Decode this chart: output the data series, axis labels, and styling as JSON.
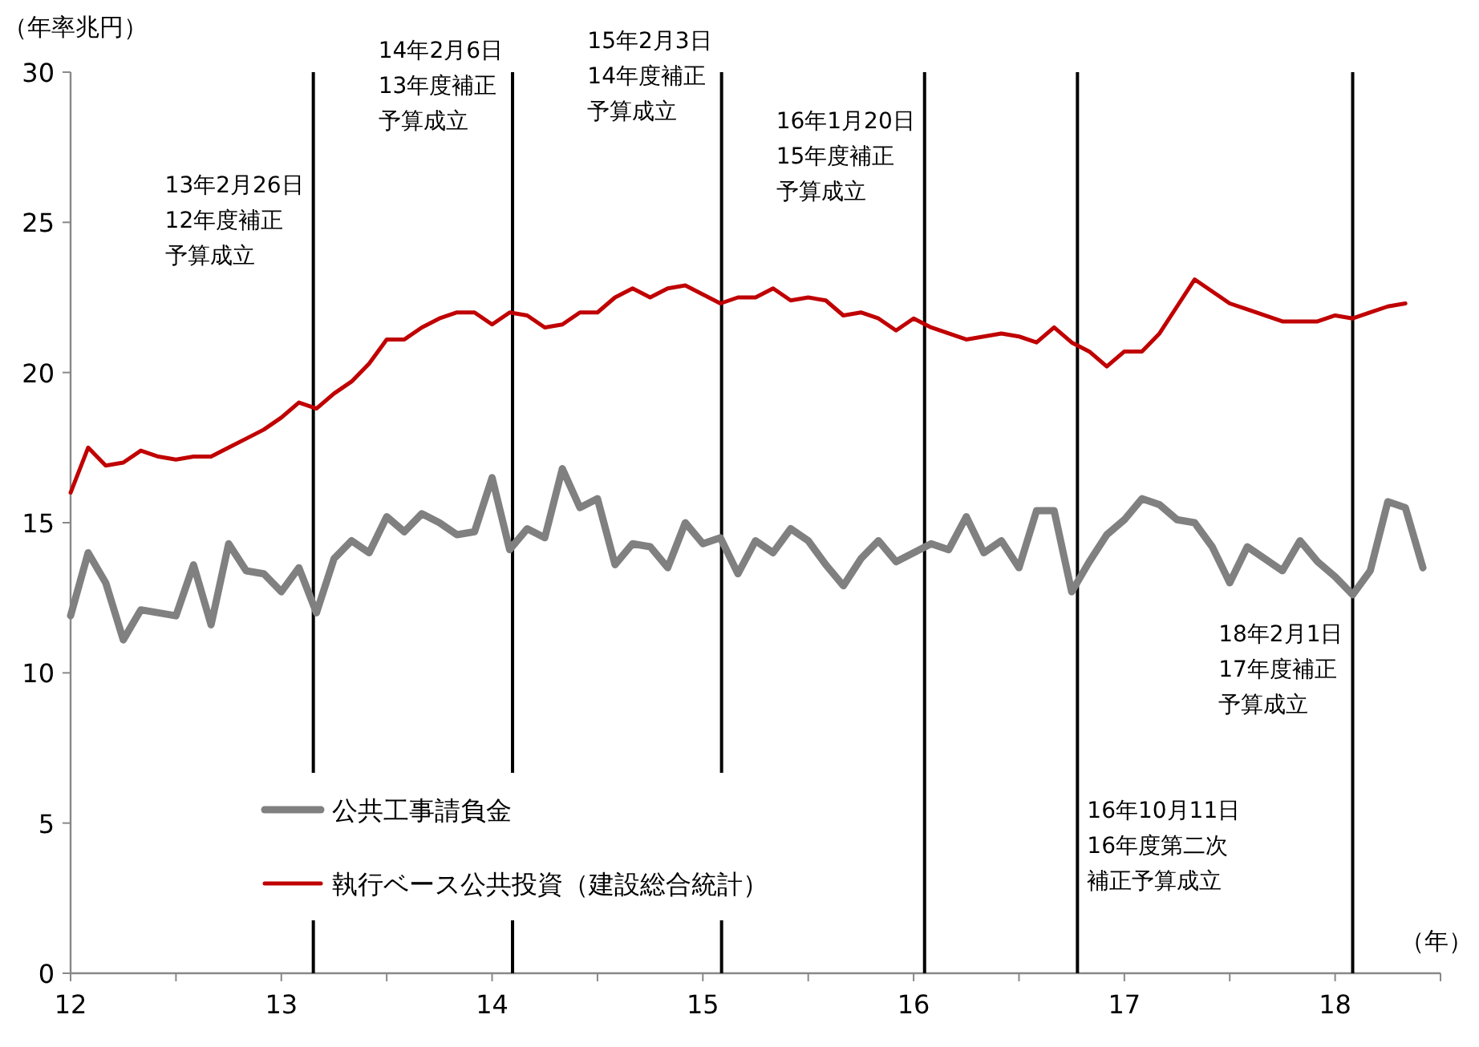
{
  "chart_data": {
    "type": "line",
    "ylabel": "（年率兆円）",
    "xlabel": "（年）",
    "x": [
      "2012-01",
      "2012-02",
      "2012-03",
      "2012-04",
      "2012-05",
      "2012-06",
      "2012-07",
      "2012-08",
      "2012-09",
      "2012-10",
      "2012-11",
      "2012-12",
      "2013-01",
      "2013-02",
      "2013-03",
      "2013-04",
      "2013-05",
      "2013-06",
      "2013-07",
      "2013-08",
      "2013-09",
      "2013-10",
      "2013-11",
      "2013-12",
      "2014-01",
      "2014-02",
      "2014-03",
      "2014-04",
      "2014-05",
      "2014-06",
      "2014-07",
      "2014-08",
      "2014-09",
      "2014-10",
      "2014-11",
      "2014-12",
      "2015-01",
      "2015-02",
      "2015-03",
      "2015-04",
      "2015-05",
      "2015-06",
      "2015-07",
      "2015-08",
      "2015-09",
      "2015-10",
      "2015-11",
      "2015-12",
      "2016-01",
      "2016-02",
      "2016-03",
      "2016-04",
      "2016-05",
      "2016-06",
      "2016-07",
      "2016-08",
      "2016-09",
      "2016-10",
      "2016-11",
      "2016-12",
      "2017-01",
      "2017-02",
      "2017-03",
      "2017-04",
      "2017-05",
      "2017-06",
      "2017-07",
      "2017-08",
      "2017-09",
      "2017-10",
      "2017-11",
      "2017-12",
      "2018-01",
      "2018-02",
      "2018-03",
      "2018-04",
      "2018-05",
      "2018-06"
    ],
    "series": [
      {
        "name": "公共工事請負金",
        "color": "#808080",
        "values": [
          11.9,
          14.0,
          13.0,
          11.1,
          12.1,
          12.0,
          11.9,
          13.6,
          11.6,
          14.3,
          13.4,
          13.3,
          12.7,
          13.5,
          12.0,
          13.8,
          14.4,
          14.0,
          15.2,
          14.7,
          15.3,
          15.0,
          14.6,
          14.7,
          16.5,
          14.1,
          14.8,
          14.5,
          16.8,
          15.5,
          15.8,
          13.6,
          14.3,
          14.2,
          13.5,
          15.0,
          14.3,
          14.5,
          13.3,
          14.4,
          14.0,
          14.8,
          14.4,
          13.6,
          12.9,
          13.8,
          14.4,
          13.7,
          14.0,
          14.3,
          14.1,
          15.2,
          14.0,
          14.4,
          13.5,
          15.4,
          15.4,
          12.7,
          13.7,
          14.6,
          15.1,
          15.8,
          15.6,
          15.1,
          15.0,
          14.2,
          13.0,
          14.2,
          13.8,
          13.4,
          14.4,
          13.7,
          13.2,
          12.6,
          13.4,
          15.7,
          15.5,
          13.5
        ]
      },
      {
        "name": "執行ベース公共投資（建設総合統計）",
        "color": "#c00000",
        "values": [
          16.0,
          17.5,
          16.9,
          17.0,
          17.4,
          17.2,
          17.1,
          17.2,
          17.2,
          17.5,
          17.8,
          18.1,
          18.5,
          19.0,
          18.8,
          19.3,
          19.7,
          20.3,
          21.1,
          21.1,
          21.5,
          21.8,
          22.0,
          22.0,
          21.6,
          22.0,
          21.9,
          21.5,
          21.6,
          22.0,
          22.0,
          22.5,
          22.8,
          22.5,
          22.8,
          22.9,
          22.6,
          22.3,
          22.5,
          22.5,
          22.8,
          22.4,
          22.5,
          22.4,
          21.9,
          22.0,
          21.8,
          21.4,
          21.8,
          21.5,
          21.3,
          21.1,
          21.2,
          21.3,
          21.2,
          21.0,
          21.5,
          21.0,
          20.7,
          20.2,
          20.7,
          20.7,
          21.3,
          22.2,
          23.1,
          22.7,
          22.3,
          22.1,
          21.9,
          21.7,
          21.7,
          21.7,
          21.9,
          21.8,
          22.0,
          22.2,
          22.3,
          null
        ]
      }
    ],
    "xlim": [
      "2012-01",
      "2018-07"
    ],
    "xticks": [
      {
        "value": "2012-01",
        "label": "12"
      },
      {
        "value": "2012-07",
        "label": null
      },
      {
        "value": "2013-01",
        "label": "13"
      },
      {
        "value": "2013-07",
        "label": null
      },
      {
        "value": "2014-01",
        "label": "14"
      },
      {
        "value": "2014-07",
        "label": null
      },
      {
        "value": "2015-01",
        "label": "15"
      },
      {
        "value": "2015-07",
        "label": null
      },
      {
        "value": "2016-01",
        "label": "16"
      },
      {
        "value": "2016-07",
        "label": null
      },
      {
        "value": "2017-01",
        "label": "17"
      },
      {
        "value": "2017-07",
        "label": null
      },
      {
        "value": "2018-01",
        "label": "18"
      },
      {
        "value": "2018-07",
        "label": null
      }
    ],
    "ylim": [
      0,
      30
    ],
    "yticks": [
      0,
      5,
      10,
      15,
      20,
      25,
      30
    ],
    "ref_lines": [
      {
        "axis": "x",
        "value": "2013-02-26",
        "label": "13年2月26日12年度補正予算成立",
        "color": "#000000"
      },
      {
        "axis": "x",
        "value": "2014-02-06",
        "label": "14年2月6日13年度補正予算成立",
        "color": "#000000"
      },
      {
        "axis": "x",
        "value": "2015-02-03",
        "label": "15年2月3日14年度補正予算成立",
        "color": "#000000"
      },
      {
        "axis": "x",
        "value": "2016-01-20",
        "label": "16年1月20日15年度補正予算成立",
        "color": "#000000"
      },
      {
        "axis": "x",
        "value": "2016-10-11",
        "label": "16年10月11日16年度第二次補正予算成立",
        "color": "#000000"
      },
      {
        "axis": "x",
        "value": "2018-02-01",
        "label": "18年2月1日17年度補正予算成立",
        "color": "#000000"
      }
    ],
    "grid": false,
    "legend": "bottom left",
    "marker": "none",
    "line_style": "solid"
  }
}
